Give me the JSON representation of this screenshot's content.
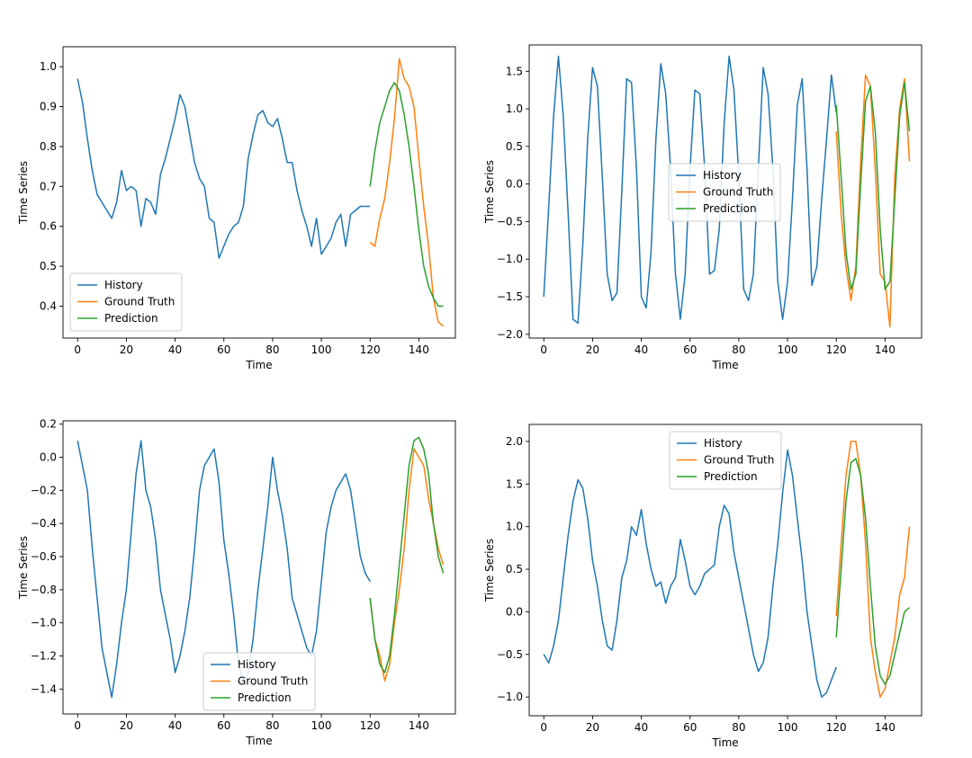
{
  "chart_data": [
    {
      "type": "line",
      "xlabel": "Time",
      "ylabel": "Time Series",
      "xlim": [
        -6,
        155
      ],
      "ylim": [
        0.32,
        1.05
      ],
      "xticks": [
        0,
        20,
        40,
        60,
        80,
        100,
        120,
        140
      ],
      "yticks": [
        0.4,
        0.5,
        0.6,
        0.7,
        0.8,
        0.9,
        1.0
      ],
      "ytick_labels": [
        "0.4",
        "0.5",
        "0.6",
        "0.7",
        "0.8",
        "0.9",
        "1.0"
      ],
      "legend_position": "lower-left",
      "series": [
        {
          "name": "History",
          "color": "#1f77b4",
          "x": [
            0,
            2,
            4,
            6,
            8,
            10,
            12,
            14,
            16,
            18,
            20,
            22,
            24,
            26,
            28,
            30,
            32,
            34,
            36,
            38,
            40,
            42,
            44,
            46,
            48,
            50,
            52,
            54,
            56,
            58,
            60,
            62,
            64,
            66,
            68,
            70,
            72,
            74,
            76,
            78,
            80,
            82,
            84,
            86,
            88,
            90,
            92,
            94,
            96,
            98,
            100,
            102,
            104,
            106,
            108,
            110,
            112,
            114,
            116,
            118,
            120
          ],
          "y": [
            0.97,
            0.91,
            0.82,
            0.74,
            0.68,
            0.66,
            0.64,
            0.62,
            0.66,
            0.74,
            0.69,
            0.7,
            0.69,
            0.6,
            0.67,
            0.66,
            0.63,
            0.73,
            0.77,
            0.82,
            0.87,
            0.93,
            0.9,
            0.83,
            0.76,
            0.72,
            0.7,
            0.62,
            0.61,
            0.52,
            0.55,
            0.58,
            0.6,
            0.61,
            0.65,
            0.77,
            0.83,
            0.88,
            0.89,
            0.86,
            0.85,
            0.87,
            0.82,
            0.76,
            0.76,
            0.69,
            0.64,
            0.6,
            0.55,
            0.62,
            0.53,
            0.55,
            0.57,
            0.61,
            0.63,
            0.55,
            0.63,
            0.64,
            0.65,
            0.65,
            0.65
          ]
        },
        {
          "name": "Ground Truth",
          "color": "#ff7f0e",
          "x": [
            120,
            122,
            124,
            126,
            128,
            130,
            132,
            134,
            136,
            138,
            140,
            142,
            144,
            146,
            148,
            150
          ],
          "y": [
            0.56,
            0.55,
            0.62,
            0.67,
            0.76,
            0.87,
            1.02,
            0.97,
            0.95,
            0.9,
            0.77,
            0.65,
            0.55,
            0.42,
            0.36,
            0.35
          ]
        },
        {
          "name": "Prediction",
          "color": "#2ca02c",
          "x": [
            120,
            122,
            124,
            126,
            128,
            130,
            132,
            134,
            136,
            138,
            140,
            142,
            144,
            146,
            148,
            150
          ],
          "y": [
            0.7,
            0.79,
            0.86,
            0.9,
            0.94,
            0.96,
            0.94,
            0.88,
            0.8,
            0.7,
            0.59,
            0.5,
            0.45,
            0.42,
            0.4,
            0.4
          ]
        }
      ]
    },
    {
      "type": "line",
      "xlabel": "Time",
      "ylabel": "Time Series",
      "xlim": [
        -6,
        155
      ],
      "ylim": [
        -2.05,
        1.85
      ],
      "xticks": [
        0,
        20,
        40,
        60,
        80,
        100,
        120,
        140
      ],
      "yticks": [
        -2.0,
        -1.5,
        -1.0,
        -0.5,
        0.0,
        0.5,
        1.0,
        1.5
      ],
      "ytick_labels": [
        "−2.0",
        "−1.5",
        "−1.0",
        "−0.5",
        "0.0",
        "0.5",
        "1.0",
        "1.5"
      ],
      "legend_position": "center-left",
      "series": [
        {
          "name": "History",
          "color": "#1f77b4",
          "x": [
            0,
            2,
            4,
            6,
            8,
            10,
            12,
            14,
            16,
            18,
            20,
            22,
            24,
            26,
            28,
            30,
            32,
            34,
            36,
            38,
            40,
            42,
            44,
            46,
            48,
            50,
            52,
            54,
            56,
            58,
            60,
            62,
            64,
            66,
            68,
            70,
            72,
            74,
            76,
            78,
            80,
            82,
            84,
            86,
            88,
            90,
            92,
            94,
            96,
            98,
            100,
            102,
            104,
            106,
            108,
            110,
            112,
            114,
            116,
            118,
            120
          ],
          "y": [
            -1.5,
            -0.3,
            0.9,
            1.7,
            0.9,
            -0.4,
            -1.8,
            -1.85,
            -0.8,
            0.6,
            1.55,
            1.3,
            0.1,
            -1.2,
            -1.55,
            -1.45,
            -0.1,
            1.4,
            1.35,
            0.2,
            -1.5,
            -1.65,
            -0.9,
            0.6,
            1.6,
            1.2,
            0.2,
            -1.2,
            -1.8,
            -1.2,
            0.2,
            1.25,
            1.2,
            0.2,
            -1.2,
            -1.15,
            -0.6,
            0.8,
            1.7,
            1.25,
            0.1,
            -1.4,
            -1.55,
            -1.2,
            0.2,
            1.55,
            1.2,
            0.2,
            -1.3,
            -1.8,
            -1.3,
            -0.2,
            1.05,
            1.4,
            0.2,
            -1.35,
            -1.1,
            -0.2,
            0.6,
            1.45,
            0.95
          ]
        },
        {
          "name": "Ground Truth",
          "color": "#ff7f0e",
          "x": [
            120,
            122,
            124,
            126,
            128,
            130,
            132,
            134,
            136,
            138,
            140,
            142,
            144,
            146,
            148,
            150
          ],
          "y": [
            0.7,
            -0.4,
            -1.1,
            -1.55,
            -1.1,
            0.3,
            1.45,
            1.3,
            0.2,
            -1.2,
            -1.3,
            -1.9,
            0.1,
            1.0,
            1.4,
            0.3
          ]
        },
        {
          "name": "Prediction",
          "color": "#2ca02c",
          "x": [
            120,
            122,
            124,
            126,
            128,
            130,
            132,
            134,
            136,
            138,
            140,
            142,
            144,
            146,
            148,
            150
          ],
          "y": [
            1.05,
            0.1,
            -0.9,
            -1.4,
            -1.2,
            0.0,
            1.1,
            1.3,
            0.7,
            -0.6,
            -1.4,
            -1.3,
            -0.2,
            0.9,
            1.35,
            0.7
          ]
        }
      ]
    },
    {
      "type": "line",
      "xlabel": "Time",
      "ylabel": "Time Series",
      "xlim": [
        -6,
        155
      ],
      "ylim": [
        -1.55,
        0.22
      ],
      "xticks": [
        0,
        20,
        40,
        60,
        80,
        100,
        120,
        140
      ],
      "yticks": [
        -1.4,
        -1.2,
        -1.0,
        -0.8,
        -0.6,
        -0.4,
        -0.2,
        0.0,
        0.2
      ],
      "ytick_labels": [
        "−1.4",
        "−1.2",
        "−1.0",
        "−0.8",
        "−0.6",
        "−0.4",
        "−0.2",
        "0.0",
        "0.2"
      ],
      "legend_position": "lower-center",
      "series": [
        {
          "name": "History",
          "color": "#1f77b4",
          "x": [
            0,
            2,
            4,
            6,
            8,
            10,
            12,
            14,
            16,
            18,
            20,
            22,
            24,
            26,
            28,
            30,
            32,
            34,
            36,
            38,
            40,
            42,
            44,
            46,
            48,
            50,
            52,
            54,
            56,
            58,
            60,
            62,
            64,
            66,
            68,
            70,
            72,
            74,
            76,
            78,
            80,
            82,
            84,
            86,
            88,
            90,
            92,
            94,
            96,
            98,
            100,
            102,
            104,
            106,
            108,
            110,
            112,
            114,
            116,
            118,
            120
          ],
          "y": [
            0.1,
            -0.05,
            -0.2,
            -0.55,
            -0.85,
            -1.15,
            -1.3,
            -1.45,
            -1.25,
            -1.0,
            -0.8,
            -0.45,
            -0.1,
            0.1,
            -0.2,
            -0.3,
            -0.5,
            -0.8,
            -0.95,
            -1.1,
            -1.3,
            -1.2,
            -1.05,
            -0.85,
            -0.55,
            -0.2,
            -0.05,
            0.0,
            0.05,
            -0.15,
            -0.5,
            -0.7,
            -0.95,
            -1.25,
            -1.35,
            -1.3,
            -1.1,
            -0.8,
            -0.55,
            -0.3,
            0.0,
            -0.2,
            -0.35,
            -0.55,
            -0.85,
            -0.95,
            -1.05,
            -1.15,
            -1.2,
            -1.05,
            -0.75,
            -0.45,
            -0.3,
            -0.2,
            -0.15,
            -0.1,
            -0.2,
            -0.4,
            -0.6,
            -0.7,
            -0.75
          ]
        },
        {
          "name": "Ground Truth",
          "color": "#ff7f0e",
          "x": [
            120,
            122,
            124,
            126,
            128,
            130,
            132,
            134,
            136,
            138,
            140,
            142,
            144,
            146,
            148,
            150
          ],
          "y": [
            -0.85,
            -1.1,
            -1.2,
            -1.35,
            -1.25,
            -1.0,
            -0.8,
            -0.55,
            -0.2,
            0.05,
            0.0,
            -0.05,
            -0.25,
            -0.4,
            -0.55,
            -0.65
          ]
        },
        {
          "name": "Prediction",
          "color": "#2ca02c",
          "x": [
            120,
            122,
            124,
            126,
            128,
            130,
            132,
            134,
            136,
            138,
            140,
            142,
            144,
            146,
            148,
            150
          ],
          "y": [
            -0.85,
            -1.1,
            -1.25,
            -1.3,
            -1.2,
            -0.95,
            -0.65,
            -0.35,
            -0.05,
            0.1,
            0.12,
            0.05,
            -0.1,
            -0.4,
            -0.6,
            -0.7
          ]
        }
      ]
    },
    {
      "type": "line",
      "xlabel": "Time",
      "ylabel": "Time Series",
      "xlim": [
        -6,
        155
      ],
      "ylim": [
        -1.22,
        2.2
      ],
      "xticks": [
        0,
        20,
        40,
        60,
        80,
        100,
        120,
        140
      ],
      "yticks": [
        -1.0,
        -0.5,
        0.0,
        0.5,
        1.0,
        1.5,
        2.0
      ],
      "ytick_labels": [
        "−1.0",
        "−0.5",
        "0.0",
        "0.5",
        "1.0",
        "1.5",
        "2.0"
      ],
      "legend_position": "upper-center",
      "series": [
        {
          "name": "History",
          "color": "#1f77b4",
          "x": [
            0,
            2,
            4,
            6,
            8,
            10,
            12,
            14,
            16,
            18,
            20,
            22,
            24,
            26,
            28,
            30,
            32,
            34,
            36,
            38,
            40,
            42,
            44,
            46,
            48,
            50,
            52,
            54,
            56,
            58,
            60,
            62,
            64,
            66,
            68,
            70,
            72,
            74,
            76,
            78,
            80,
            82,
            84,
            86,
            88,
            90,
            92,
            94,
            96,
            98,
            100,
            102,
            104,
            106,
            108,
            110,
            112,
            114,
            116,
            118,
            120
          ],
          "y": [
            -0.5,
            -0.6,
            -0.4,
            -0.1,
            0.4,
            0.9,
            1.3,
            1.55,
            1.45,
            1.1,
            0.6,
            0.3,
            -0.1,
            -0.4,
            -0.45,
            -0.1,
            0.4,
            0.6,
            1.0,
            0.9,
            1.2,
            0.8,
            0.5,
            0.3,
            0.35,
            0.1,
            0.3,
            0.4,
            0.85,
            0.6,
            0.3,
            0.2,
            0.3,
            0.45,
            0.5,
            0.55,
            1.0,
            1.25,
            1.15,
            0.7,
            0.4,
            0.1,
            -0.2,
            -0.5,
            -0.7,
            -0.6,
            -0.3,
            0.3,
            0.8,
            1.4,
            1.9,
            1.6,
            1.1,
            0.6,
            0.0,
            -0.4,
            -0.8,
            -1.0,
            -0.95,
            -0.8,
            -0.65
          ]
        },
        {
          "name": "Ground Truth",
          "color": "#ff7f0e",
          "x": [
            120,
            122,
            124,
            126,
            128,
            130,
            132,
            134,
            136,
            138,
            140,
            142,
            144,
            146,
            148,
            150
          ],
          "y": [
            -0.05,
            0.8,
            1.6,
            2.0,
            2.0,
            1.6,
            0.8,
            -0.3,
            -0.7,
            -1.0,
            -0.9,
            -0.6,
            -0.3,
            0.2,
            0.4,
            1.0
          ]
        },
        {
          "name": "Prediction",
          "color": "#2ca02c",
          "x": [
            120,
            122,
            124,
            126,
            128,
            130,
            132,
            134,
            136,
            138,
            140,
            142,
            144,
            146,
            148,
            150
          ],
          "y": [
            -0.3,
            0.5,
            1.3,
            1.75,
            1.8,
            1.6,
            1.1,
            0.3,
            -0.4,
            -0.75,
            -0.85,
            -0.75,
            -0.5,
            -0.25,
            0.0,
            0.05
          ]
        }
      ]
    }
  ]
}
